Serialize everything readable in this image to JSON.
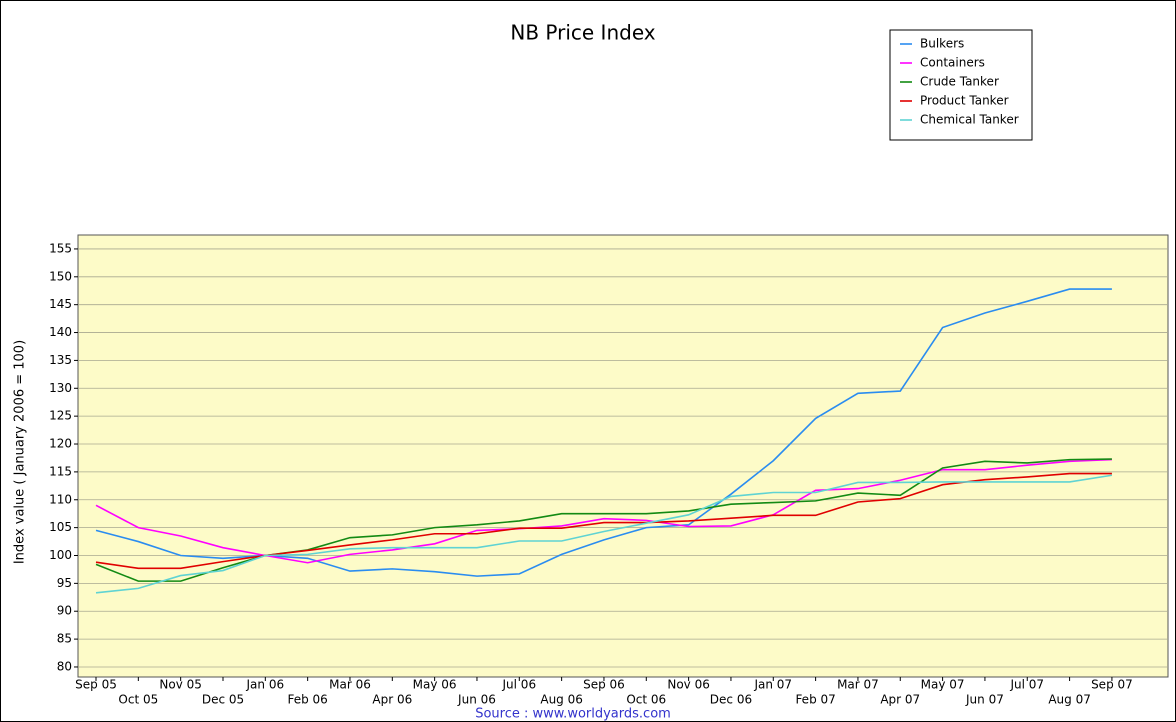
{
  "chart_data": {
    "type": "line",
    "title": "NB Price Index",
    "y_label": "Index value ( January 2006 = 100)",
    "source": "Source : www.worldyards.com",
    "categories": [
      "Sep 05",
      "Oct 05",
      "Nov 05",
      "Dec 05",
      "Jan 06",
      "Feb 06",
      "Mar 06",
      "Apr 06",
      "May 06",
      "Jun 06",
      "Jul 06",
      "Aug 06",
      "Sep 06",
      "Oct 06",
      "Nov 06",
      "Dec 06",
      "Jan 07",
      "Feb 07",
      "Mar 07",
      "Apr 07",
      "May 07",
      "Jun 07",
      "Jul 07",
      "Aug 07",
      "Sep 07"
    ],
    "series": [
      {
        "name": "Bulkers",
        "color": "#2a8cf0",
        "values": [
          104.5,
          102.5,
          100,
          99.5,
          100,
          99.5,
          97.2,
          97.6,
          97.1,
          96.3,
          96.7,
          100.2,
          102.8,
          105,
          105.5,
          111,
          117,
          124.6,
          129.1,
          129.5,
          140.9,
          143.5,
          145.6,
          147.8,
          147.8
        ]
      },
      {
        "name": "Containers",
        "color": "#ff00ff",
        "values": [
          109,
          105,
          103.5,
          101.4,
          100,
          98.7,
          100.2,
          101,
          102.1,
          104.5,
          104.8,
          105.3,
          106.6,
          106.3,
          105.2,
          105.3,
          107.3,
          111.7,
          112,
          113.5,
          115.4,
          115.4,
          116.2,
          116.9,
          117.2
        ]
      },
      {
        "name": "Crude Tanker",
        "color": "#138a13",
        "values": [
          98.4,
          95.4,
          95.4,
          97.8,
          100,
          101,
          103.2,
          103.7,
          105,
          105.5,
          106.2,
          107.5,
          107.5,
          107.5,
          108,
          109.2,
          109.5,
          109.8,
          111.2,
          110.8,
          115.7,
          116.9,
          116.6,
          117.2,
          117.3
        ]
      },
      {
        "name": "Product Tanker",
        "color": "#e00000",
        "values": [
          98.8,
          97.7,
          97.7,
          98.9,
          100,
          100.9,
          101.9,
          102.8,
          103.9,
          103.9,
          104.9,
          104.9,
          105.9,
          105.9,
          106.2,
          106.7,
          107.2,
          107.2,
          109.6,
          110.2,
          112.7,
          113.6,
          114.1,
          114.7,
          114.7
        ]
      },
      {
        "name": "Chemical Tanker",
        "color": "#5fd3d3",
        "values": [
          93.3,
          94.1,
          96.4,
          97.3,
          100,
          100.2,
          101.2,
          101.4,
          101.4,
          101.4,
          102.6,
          102.6,
          104.3,
          105.8,
          107.3,
          110.6,
          111.3,
          111.3,
          113.1,
          113.1,
          113.2,
          113.2,
          113.2,
          113.2,
          114.4
        ]
      }
    ],
    "ylim": [
      78.2,
      157.5
    ],
    "yticks": [
      80,
      85,
      90,
      95,
      100,
      105,
      110,
      115,
      120,
      125,
      130,
      135,
      140,
      145,
      150,
      155
    ],
    "grid": true,
    "legend": "top-right",
    "background": "#fdfbc8"
  }
}
